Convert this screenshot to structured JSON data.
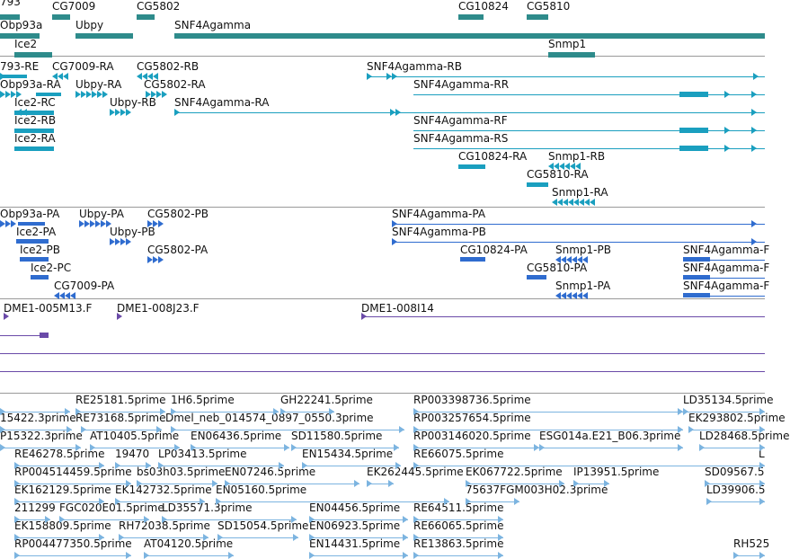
{
  "colors": {
    "gene": "#2e8b8b",
    "transcript": "#1a9fbf",
    "protein": "#2f6ccf",
    "clone": "#6a4aa8",
    "est": "#7cb4e0"
  },
  "tracks": {
    "genes": [
      {
        "label": "793"
      },
      {
        "label": "CG7009"
      },
      {
        "label": "CG5802"
      },
      {
        "label": "CG10824"
      },
      {
        "label": "CG5810"
      },
      {
        "label": "Obp93a"
      },
      {
        "label": "Ubpy"
      },
      {
        "label": "SNF4Agamma"
      },
      {
        "label": "Ice2"
      },
      {
        "label": "Snmp1"
      }
    ],
    "transcripts": [
      {
        "label": "793-RE"
      },
      {
        "label": "CG7009-RA"
      },
      {
        "label": "CG5802-RB"
      },
      {
        "label": "SNF4Agamma-RB"
      },
      {
        "label": "Obp93a-RA"
      },
      {
        "label": "Ubpy-RA"
      },
      {
        "label": "CG5802-RA"
      },
      {
        "label": "SNF4Agamma-RR"
      },
      {
        "label": "Ice2-RC"
      },
      {
        "label": "Ubpy-RB"
      },
      {
        "label": "SNF4Agamma-RA"
      },
      {
        "label": "Ice2-RB"
      },
      {
        "label": "SNF4Agamma-RF"
      },
      {
        "label": "Ice2-RA"
      },
      {
        "label": "SNF4Agamma-RS"
      },
      {
        "label": "CG10824-RA"
      },
      {
        "label": "Snmp1-RB"
      },
      {
        "label": "CG5810-RA"
      },
      {
        "label": "Snmp1-RA"
      }
    ],
    "proteins": [
      {
        "label": "Obp93a-PA"
      },
      {
        "label": "Ubpy-PA"
      },
      {
        "label": "CG5802-PB"
      },
      {
        "label": "SNF4Agamma-PA"
      },
      {
        "label": "Ice2-PA"
      },
      {
        "label": "Ubpy-PB"
      },
      {
        "label": "SNF4Agamma-PB"
      },
      {
        "label": "Ice2-PB"
      },
      {
        "label": "CG5802-PA"
      },
      {
        "label": "CG10824-PA"
      },
      {
        "label": "Snmp1-PB"
      },
      {
        "label": "SNF4Agamma-F"
      },
      {
        "label": "Ice2-PC"
      },
      {
        "label": "CG5810-PA"
      },
      {
        "label": "SNF4Agamma-F"
      },
      {
        "label": "CG7009-PA"
      },
      {
        "label": "Snmp1-PA"
      },
      {
        "label": "SNF4Agamma-F"
      }
    ],
    "clones": [
      {
        "label": "DME1-005M13.F"
      },
      {
        "label": "DME1-008J23.F"
      },
      {
        "label": "DME1-008I14"
      }
    ],
    "ests": [
      {
        "label": "RE25181.5prime"
      },
      {
        "label": "1H6.5prime"
      },
      {
        "label": "GH22241.5prime"
      },
      {
        "label": "RP003398736.5prime"
      },
      {
        "label": "LD35134.5prime"
      },
      {
        "label": "15422.3prime"
      },
      {
        "label": "RE73168.5prime"
      },
      {
        "label": "Dmel_neb_014574_0897_0550.3prime"
      },
      {
        "label": "RP003257654.5prime"
      },
      {
        "label": "EK293802.5prime"
      },
      {
        "label": "P15322.3prime"
      },
      {
        "label": "AT10405.5prime"
      },
      {
        "label": "EN06436.5prime"
      },
      {
        "label": "SD11580.5prime"
      },
      {
        "label": "RP003146020.5prime"
      },
      {
        "label": "ESG014a.E21_B06.3prime"
      },
      {
        "label": "LD28468.5prime"
      },
      {
        "label": "RE46278.5prime"
      },
      {
        "label": "19470"
      },
      {
        "label": "LP03413.5prime"
      },
      {
        "label": "EN15434.5prime"
      },
      {
        "label": "RE66075.5prime"
      },
      {
        "label": "L"
      },
      {
        "label": "RP004514459.5prime"
      },
      {
        "label": "bs03h03.5prime"
      },
      {
        "label": "EN07246.5prime"
      },
      {
        "label": "EK262445.5prime"
      },
      {
        "label": "EK067722.5prime"
      },
      {
        "label": "IP13951.5prime"
      },
      {
        "label": "SD09567.5"
      },
      {
        "label": "EK162129.5prime"
      },
      {
        "label": "EK142732.5prime"
      },
      {
        "label": "EN05160.5prime"
      },
      {
        "label": "75637FGM003H02.3prime"
      },
      {
        "label": "LD39906.5"
      },
      {
        "label": "211299"
      },
      {
        "label": "FGC020E01.5prime"
      },
      {
        "label": "LD35571.3prime"
      },
      {
        "label": "EN04456.5prime"
      },
      {
        "label": "RE64511.5prime"
      },
      {
        "label": "EK158809.5prime"
      },
      {
        "label": "RH72038.5prime"
      },
      {
        "label": "SD15054.5prime"
      },
      {
        "label": "EN06923.5prime"
      },
      {
        "label": "RE66065.5prime"
      },
      {
        "label": "RP004477350.5prime"
      },
      {
        "label": "AT04120.5prime"
      },
      {
        "label": "EN14431.5prime"
      },
      {
        "label": "RE13863.5prime"
      },
      {
        "label": "RH525"
      }
    ]
  }
}
